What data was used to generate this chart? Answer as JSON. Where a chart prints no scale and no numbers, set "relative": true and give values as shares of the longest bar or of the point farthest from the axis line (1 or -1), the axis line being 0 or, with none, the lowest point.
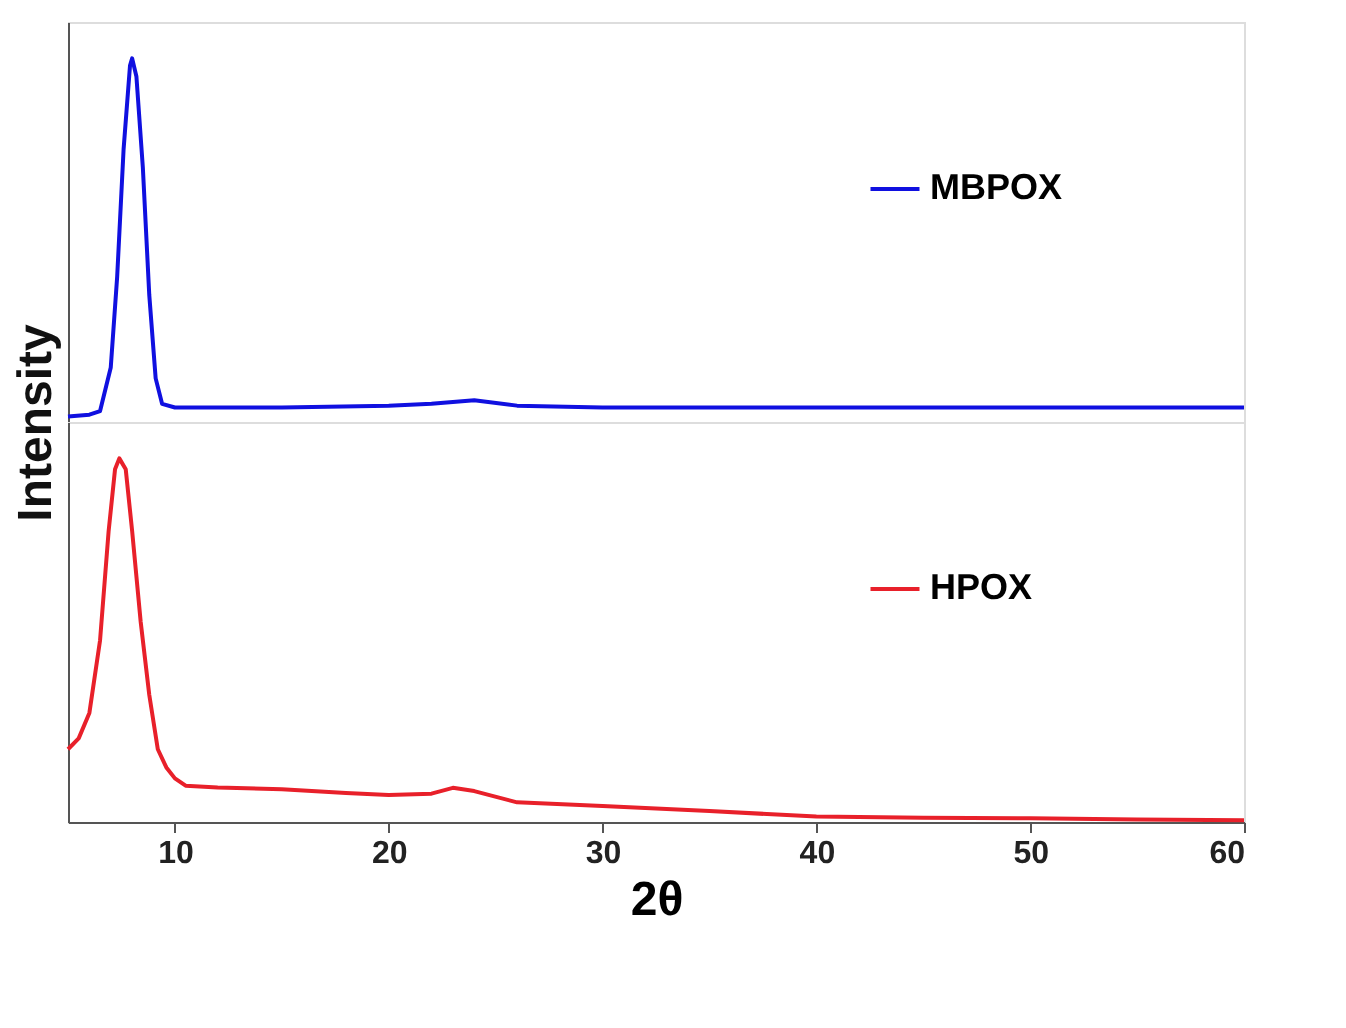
{
  "chart_data": [
    {
      "type": "line",
      "relative": true,
      "ylabel": "Intensity",
      "xlim": [
        5,
        60
      ],
      "xticks": [
        10,
        20,
        30,
        40,
        50,
        60
      ],
      "tick_labels": false,
      "grid": false,
      "legend": "right",
      "marker": "none",
      "line_style": "solid",
      "series": [
        {
          "name": "MBPOX",
          "color": "#1010e0",
          "x": [
            5,
            6,
            6.5,
            7,
            7.3,
            7.6,
            7.9,
            8.0,
            8.2,
            8.5,
            8.8,
            9.1,
            9.4,
            10,
            15,
            20,
            22,
            24,
            26,
            30,
            40,
            50,
            60
          ],
          "values": [
            0.015,
            0.02,
            0.03,
            0.15,
            0.4,
            0.75,
            0.98,
            1.0,
            0.95,
            0.7,
            0.35,
            0.12,
            0.05,
            0.04,
            0.04,
            0.045,
            0.05,
            0.06,
            0.045,
            0.04,
            0.04,
            0.04,
            0.04
          ]
        }
      ]
    },
    {
      "type": "line",
      "relative": true,
      "xlabel": "2θ",
      "xlim": [
        5,
        60
      ],
      "xticks": [
        10,
        20,
        30,
        40,
        50,
        60
      ],
      "tick_labels": "x",
      "grid": false,
      "legend": "right",
      "marker": "none",
      "line_style": "solid",
      "series": [
        {
          "name": "HPOX",
          "color": "#e8202a",
          "x": [
            5,
            5.5,
            6,
            6.5,
            6.9,
            7.2,
            7.4,
            7.7,
            8.0,
            8.4,
            8.8,
            9.2,
            9.6,
            10,
            10.5,
            12,
            15,
            18,
            20,
            22,
            23,
            24,
            26,
            30,
            35,
            40,
            45,
            50,
            55,
            60
          ],
          "values": [
            0.2,
            0.23,
            0.3,
            0.5,
            0.8,
            0.97,
            1.0,
            0.97,
            0.8,
            0.55,
            0.35,
            0.2,
            0.15,
            0.12,
            0.1,
            0.095,
            0.09,
            0.08,
            0.074,
            0.078,
            0.094,
            0.085,
            0.054,
            0.044,
            0.03,
            0.015,
            0.012,
            0.01,
            0.007,
            0.005
          ]
        }
      ]
    }
  ]
}
